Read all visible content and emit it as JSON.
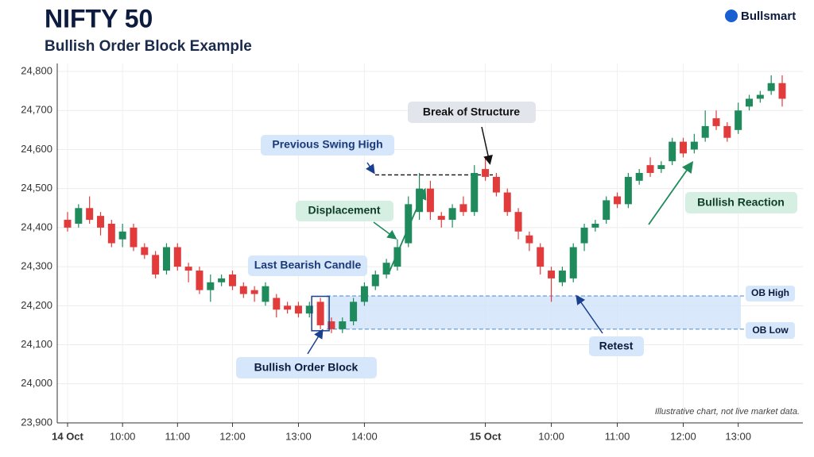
{
  "chart_data": {
    "type": "candlestick",
    "title": "NIFTY 50",
    "subtitle": "Bullish Order Block Example",
    "brand": "Bullsmart",
    "footnote": "Illustrative chart, not live market data.",
    "categories": [
      "14 Oct",
      null,
      null,
      null,
      null,
      "10:00",
      null,
      null,
      null,
      null,
      "11:00",
      null,
      null,
      null,
      null,
      "12:00",
      null,
      null,
      null,
      null,
      null,
      "13:00",
      null,
      null,
      null,
      null,
      null,
      "14:00",
      null,
      null,
      null,
      null,
      null,
      null,
      null,
      null,
      null,
      null,
      "15 Oct",
      null,
      null,
      null,
      null,
      null,
      "10:00",
      null,
      null,
      null,
      null,
      null,
      "11:00",
      null,
      null,
      null,
      null,
      null,
      "12:00",
      null,
      null,
      null,
      null,
      "13:00",
      null,
      null,
      null,
      null
    ],
    "open": [
      24420,
      24410,
      24450,
      24430,
      24410,
      24370,
      24400,
      24350,
      24330,
      24290,
      24350,
      24300,
      24290,
      24240,
      24260,
      24280,
      24250,
      24240,
      24210,
      24220,
      24200,
      24200,
      24180,
      24210,
      24160,
      24140,
      24160,
      24210,
      24250,
      24280,
      24300,
      24360,
      24440,
      24500,
      24430,
      24420,
      24460,
      24440,
      24550,
      24530,
      24490,
      24440,
      24380,
      24350,
      24290,
      24260,
      24270,
      24360,
      24400,
      24420,
      24480,
      24460,
      24520,
      24560,
      24550,
      24570,
      24620,
      24600,
      24630,
      24680,
      24660,
      24650,
      24710,
      24730,
      24750,
      24770
    ],
    "high": [
      24440,
      24460,
      24480,
      24440,
      24420,
      24410,
      24410,
      24360,
      24340,
      24360,
      24360,
      24310,
      24300,
      24280,
      24280,
      24290,
      24260,
      24250,
      24260,
      24230,
      24210,
      24210,
      24210,
      24220,
      24170,
      24170,
      24220,
      24260,
      24290,
      24320,
      24370,
      24480,
      24540,
      24520,
      24440,
      24460,
      24480,
      24560,
      24580,
      24540,
      24500,
      24450,
      24390,
      24360,
      24300,
      24300,
      24360,
      24410,
      24420,
      24480,
      24490,
      24540,
      24550,
      24580,
      24570,
      24630,
      24630,
      24640,
      24700,
      24700,
      24670,
      24720,
      24740,
      24750,
      24790,
      24790
    ],
    "low": [
      24390,
      24400,
      24410,
      24380,
      24350,
      24350,
      24340,
      24320,
      24270,
      24280,
      24290,
      24260,
      24230,
      24210,
      24250,
      24240,
      24220,
      24210,
      24200,
      24170,
      24180,
      24170,
      24170,
      24140,
      24130,
      24130,
      24150,
      24200,
      24240,
      24270,
      24290,
      24350,
      24420,
      24420,
      24400,
      24400,
      24430,
      24430,
      24520,
      24480,
      24430,
      24370,
      24340,
      24280,
      24210,
      24250,
      24260,
      24340,
      24390,
      24410,
      24450,
      24450,
      24510,
      24530,
      24540,
      24560,
      24580,
      24590,
      24620,
      24650,
      24620,
      24640,
      24700,
      24720,
      24740,
      24710
    ],
    "close": [
      24400,
      24450,
      24420,
      24400,
      24360,
      24390,
      24350,
      24330,
      24280,
      24350,
      24300,
      24290,
      24240,
      24260,
      24270,
      24250,
      24230,
      24230,
      24250,
      24190,
      24190,
      24180,
      24200,
      24150,
      24140,
      24160,
      24210,
      24250,
      24280,
      24310,
      24350,
      24460,
      24500,
      24440,
      24420,
      24450,
      24440,
      24540,
      24530,
      24490,
      24440,
      24390,
      24360,
      24300,
      24270,
      24290,
      24350,
      24400,
      24410,
      24470,
      24460,
      24530,
      24540,
      24540,
      24560,
      24620,
      24590,
      24620,
      24660,
      24660,
      24630,
      24700,
      24730,
      24740,
      24770,
      24730
    ],
    "up_color": "#1f8a5b",
    "down_color": "#e23b3b",
    "ylim": [
      23900,
      24830
    ],
    "yticks": [
      {
        "value": 23900,
        "label": "23,900"
      },
      {
        "value": 24000,
        "label": "24,000"
      },
      {
        "value": 24100,
        "label": "24,100"
      },
      {
        "value": 24200,
        "label": "24,200"
      },
      {
        "value": 24300,
        "label": "24,300"
      },
      {
        "value": 24400,
        "label": "24,400"
      },
      {
        "value": 24500,
        "label": "24,500"
      },
      {
        "value": 24600,
        "label": "24,600"
      },
      {
        "value": 24700,
        "label": "24,700"
      },
      {
        "value": 24800,
        "label": "24,800"
      }
    ],
    "grid": true,
    "annotations": [
      {
        "text": "Previous Swing High",
        "value": 24535
      },
      {
        "text": "Break of Structure"
      },
      {
        "text": "Displacement"
      },
      {
        "text": "Last Bearish Candle"
      },
      {
        "text": "Bullish Order Block"
      },
      {
        "text": "OB High",
        "value": 24225
      },
      {
        "text": "OB Low",
        "value": 24140
      },
      {
        "text": "Retest"
      },
      {
        "text": "Bullish Reaction"
      }
    ]
  }
}
